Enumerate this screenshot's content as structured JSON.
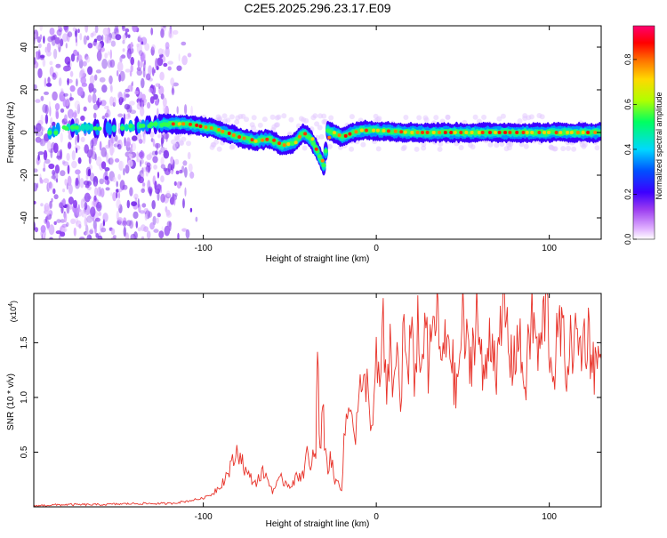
{
  "title": "C2E5.2025.296.23.17.E09",
  "chart_data": [
    {
      "type": "heatmap",
      "xlabel": "Height of straight line (km)",
      "ylabel": "Frequency (Hz)",
      "xlim": [
        -198,
        130
      ],
      "ylim": [
        -50,
        50
      ],
      "xticks": [
        -100,
        0,
        100
      ],
      "yticks": [
        -40,
        -20,
        0,
        20,
        40
      ],
      "colorbar": {
        "label": "Normalized spectral amplitude",
        "range": [
          0,
          0.95
        ],
        "ticks": [
          0.0,
          0.2,
          0.4,
          0.6,
          0.8
        ],
        "colors": [
          "#ffffff",
          "#e0b0ff",
          "#9b3cf0",
          "#3c00ff",
          "#0050ff",
          "#00d8ff",
          "#00ff60",
          "#b0ff00",
          "#ffd800",
          "#ff7000",
          "#ff0000",
          "#ff0070"
        ]
      },
      "ridge": [
        {
          "x": -185,
          "f": 2
        },
        {
          "x": -150,
          "f": 2
        },
        {
          "x": -122,
          "f": 4
        },
        {
          "x": -110,
          "f": 4
        },
        {
          "x": -95,
          "f": 2
        },
        {
          "x": -80,
          "f": -2
        },
        {
          "x": -70,
          "f": -4
        },
        {
          "x": -62,
          "f": -3
        },
        {
          "x": -55,
          "f": -6
        },
        {
          "x": -48,
          "f": -5
        },
        {
          "x": -42,
          "f": 0
        },
        {
          "x": -38,
          "f": -3
        },
        {
          "x": -34,
          "f": -9
        },
        {
          "x": -30,
          "f": -16
        },
        {
          "x": -28,
          "f": 1
        },
        {
          "x": -20,
          "f": -2
        },
        {
          "x": -10,
          "f": 1
        },
        {
          "x": 0,
          "f": 1
        },
        {
          "x": 20,
          "f": 0
        },
        {
          "x": 60,
          "f": 0
        },
        {
          "x": 100,
          "f": 0
        },
        {
          "x": 130,
          "f": 0
        }
      ]
    },
    {
      "type": "line",
      "xlabel": "Height of straight line (km)",
      "ylabel": "SNR (10 * v/v)",
      "yscale_label": "(x10",
      "yscale_exp": "4",
      "xlim": [
        -198,
        130
      ],
      "ylim": [
        0,
        1.95
      ],
      "xticks": [
        -100,
        0,
        100
      ],
      "yticks": [
        0.5,
        1.0,
        1.5
      ],
      "color": "#e8332a",
      "series": [
        {
          "x": [
            -198,
            -180,
            -160,
            -140,
            -120,
            -110,
            -100,
            -95,
            -90,
            -85,
            -80,
            -78,
            -75,
            -70,
            -65,
            -60,
            -55,
            -50,
            -45,
            -42,
            -40,
            -38,
            -36,
            -35,
            -34,
            -33,
            -32,
            -31,
            -30,
            -28,
            -26,
            -24,
            -22,
            -20,
            -18,
            -16,
            -14,
            -12,
            -10,
            -8,
            -6,
            -4,
            -2,
            0,
            2,
            4,
            6,
            8,
            10,
            12,
            14,
            16,
            18,
            20,
            22,
            24,
            26,
            28,
            30,
            34,
            38,
            42,
            46,
            50,
            54,
            58,
            62,
            66,
            70,
            74,
            78,
            82,
            86,
            90,
            94,
            98,
            102,
            106,
            110,
            114,
            118,
            122,
            126,
            130
          ],
          "y": [
            0.01,
            0.02,
            0.02,
            0.03,
            0.03,
            0.05,
            0.08,
            0.12,
            0.2,
            0.33,
            0.52,
            0.45,
            0.3,
            0.22,
            0.32,
            0.15,
            0.25,
            0.2,
            0.28,
            0.32,
            0.5,
            0.28,
            0.55,
            0.4,
            1.44,
            0.7,
            0.55,
            0.95,
            0.65,
            0.35,
            0.45,
            0.2,
            0.28,
            0.15,
            0.75,
            0.85,
            1.0,
            0.6,
            1.1,
            0.95,
            1.2,
            0.9,
            0.75,
            1.3,
            1.05,
            1.68,
            0.85,
            1.55,
            1.0,
            1.45,
            0.95,
            1.72,
            1.1,
            1.55,
            1.2,
            1.68,
            1.15,
            1.9,
            1.2,
            1.82,
            1.3,
            1.62,
            1.0,
            1.7,
            1.25,
            1.8,
            1.1,
            1.65,
            1.25,
            1.85,
            1.3,
            1.55,
            1.1,
            1.75,
            1.35,
            1.88,
            1.2,
            1.65,
            1.3,
            1.55,
            1.45,
            1.6,
            1.3,
            1.35
          ]
        }
      ]
    }
  ]
}
